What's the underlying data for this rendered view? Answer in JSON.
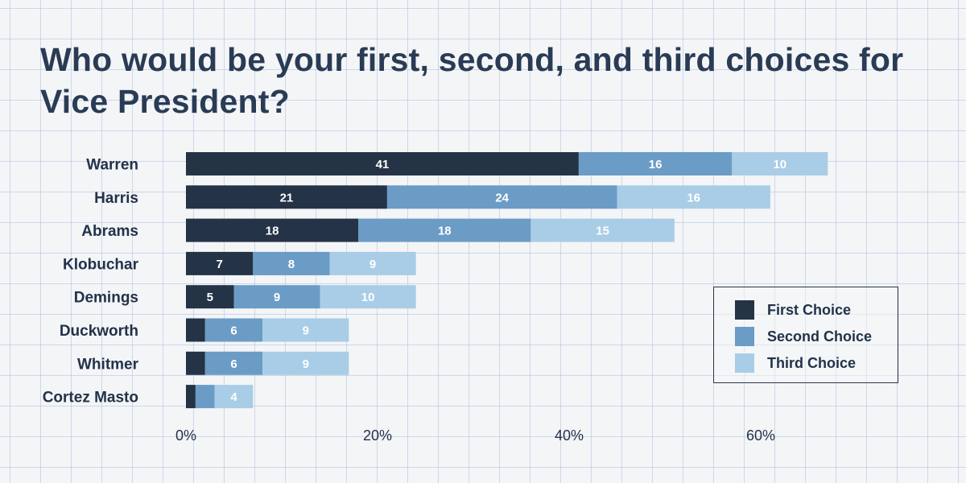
{
  "chart_data": {
    "type": "bar",
    "orientation": "horizontal",
    "stacked": true,
    "title": "Who would be your first, second, and third choices for Vice President?",
    "xlabel": "",
    "ylabel": "",
    "xlim": [
      0,
      70
    ],
    "categories": [
      "Warren",
      "Harris",
      "Abrams",
      "Klobuchar",
      "Demings",
      "Duckworth",
      "Whitmer",
      "Cortez Masto"
    ],
    "series": [
      {
        "name": "First Choice",
        "color": "#253347",
        "values": [
          41,
          21,
          18,
          7,
          5,
          2,
          2,
          1
        ]
      },
      {
        "name": "Second Choice",
        "color": "#6b9cc6",
        "values": [
          16,
          24,
          18,
          8,
          9,
          6,
          6,
          2
        ]
      },
      {
        "name": "Third Choice",
        "color": "#a9cde6",
        "values": [
          10,
          16,
          15,
          9,
          10,
          9,
          9,
          4
        ]
      }
    ],
    "value_labels": [
      [
        "41",
        "16",
        "10"
      ],
      [
        "21",
        "24",
        "16"
      ],
      [
        "18",
        "18",
        "15"
      ],
      [
        "7",
        "8",
        "9"
      ],
      [
        "5",
        "9",
        "10"
      ],
      [
        "",
        "6",
        "9"
      ],
      [
        "",
        "6",
        "9"
      ],
      [
        "",
        "",
        "4"
      ]
    ],
    "x_ticks": [
      0,
      20,
      40,
      60
    ],
    "x_tick_labels": [
      "0%",
      "20%",
      "40%",
      "60%"
    ],
    "legend_position": "right",
    "grid": false
  },
  "legend": {
    "items": [
      {
        "label": "First Choice",
        "color": "#253347"
      },
      {
        "label": "Second Choice",
        "color": "#6b9cc6"
      },
      {
        "label": "Third Choice",
        "color": "#a9cde6"
      }
    ]
  }
}
